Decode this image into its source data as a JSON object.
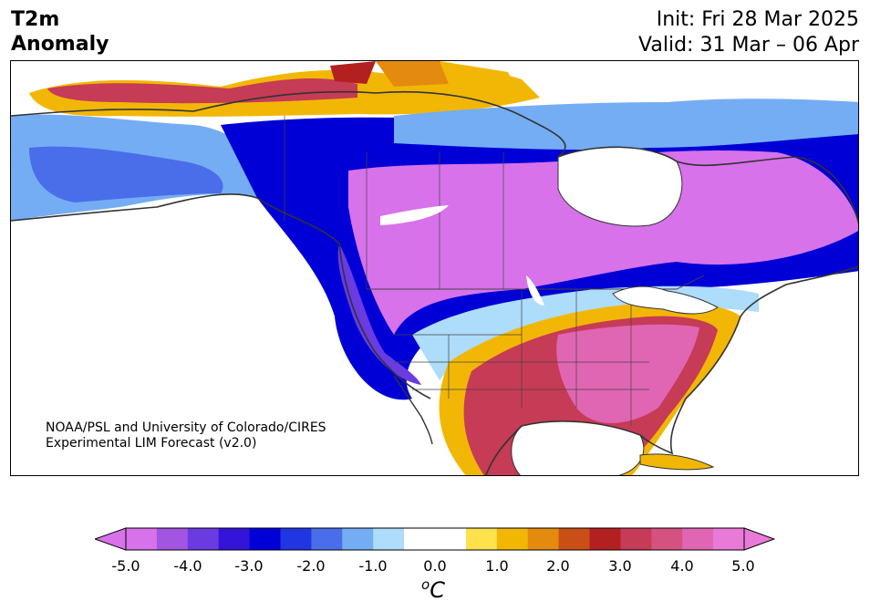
{
  "header": {
    "variable_line1": "T2m",
    "variable_line2": "Anomaly",
    "init": "Init: Fri 28 Mar 2025",
    "valid": "Valid: 31 Mar – 06 Apr"
  },
  "credit": {
    "line1": "NOAA/PSL and University of Colorado/CIRES",
    "line2": "Experimental LIM Forecast (v2.0)"
  },
  "colorbar": {
    "unit_base": "C",
    "unit_super": "o",
    "ticks": [
      "-5.0",
      "-4.0",
      "-3.0",
      "-2.0",
      "-1.0",
      "0.0",
      "1.0",
      "2.0",
      "3.0",
      "4.0",
      "5.0"
    ],
    "colors": [
      "#d772ea",
      "#a155e0",
      "#6a3be0",
      "#3314d8",
      "#0000d6",
      "#1f36e0",
      "#4a6eea",
      "#74adf4",
      "#aedcfb",
      "#ffffff",
      "#ffffff",
      "#fde24e",
      "#f2b705",
      "#e48a0f",
      "#c94f16",
      "#b32020",
      "#c63b55",
      "#d55280",
      "#e066b3",
      "#e97ad8"
    ]
  },
  "map_colors": {
    "ocean": "#ffffff",
    "coast": "#333333",
    "strong_cold": "#d772ea",
    "cold": "#0000d6",
    "mild_cold": "#74adf4",
    "warm": "#f2b705",
    "hot": "#c63b55",
    "very_hot": "#e066b3"
  }
}
